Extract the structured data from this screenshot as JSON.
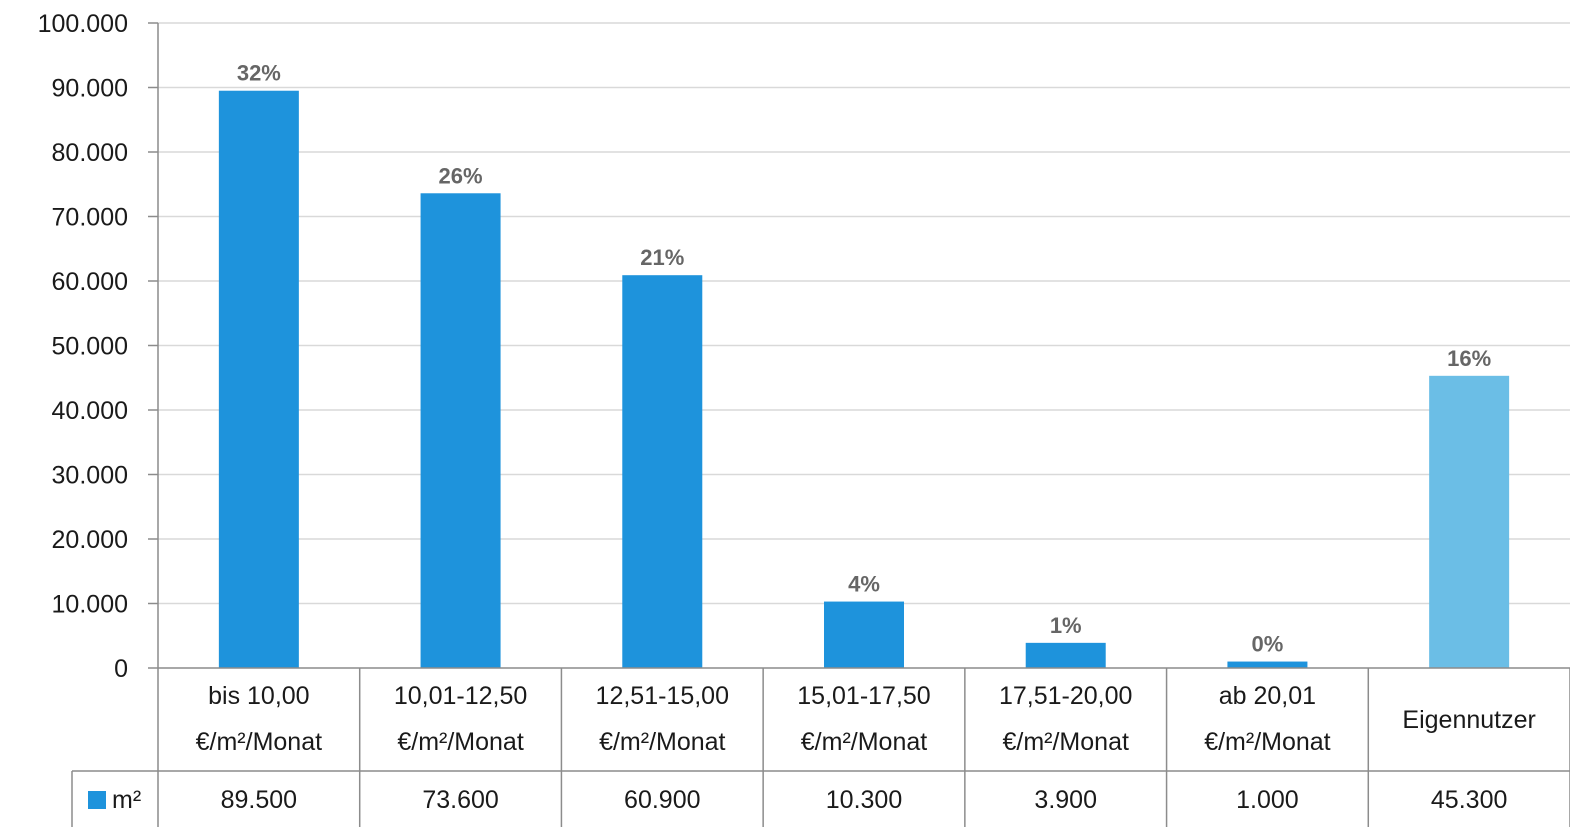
{
  "chart_data": {
    "type": "bar",
    "categories": [
      [
        "bis 10,00",
        "€/m²/Monat"
      ],
      [
        "10,01-12,50",
        "€/m²/Monat"
      ],
      [
        "12,51-15,00",
        "€/m²/Monat"
      ],
      [
        "15,01-17,50",
        "€/m²/Monat"
      ],
      [
        "17,51-20,00",
        "€/m²/Monat"
      ],
      [
        "ab 20,01",
        "€/m²/Monat"
      ],
      [
        "Eigennutzer"
      ]
    ],
    "series": [
      {
        "name": "m²",
        "values": [
          89500,
          73600,
          60900,
          10300,
          3900,
          1000,
          45300
        ],
        "value_labels": [
          "89.500",
          "73.600",
          "60.900",
          "10.300",
          "3.900",
          "1.000",
          "45.300"
        ]
      }
    ],
    "data_labels": [
      "32%",
      "26%",
      "21%",
      "4%",
      "1%",
      "0%",
      "16%"
    ],
    "y_ticks": [
      0,
      10000,
      20000,
      30000,
      40000,
      50000,
      60000,
      70000,
      80000,
      90000,
      100000
    ],
    "y_tick_labels": [
      "0",
      "10.000",
      "20.000",
      "30.000",
      "40.000",
      "50.000",
      "60.000",
      "70.000",
      "80.000",
      "90.000",
      "100.000"
    ],
    "ylim": [
      0,
      100000
    ],
    "grid": "horizontal",
    "legend_position": "data-table-left",
    "has_data_table": true,
    "title": "",
    "xlabel": "",
    "ylabel": "",
    "colors": {
      "bar": "#1e93dc",
      "bar_highlight": "#6bbee6",
      "grid": "#d9d9d9",
      "table_line": "#8c8c8c",
      "data_label": "#666666"
    }
  }
}
